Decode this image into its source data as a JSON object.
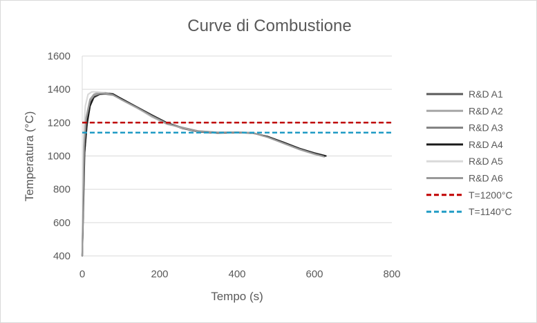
{
  "chart_data": {
    "type": "line",
    "title": "Curve di Combustione",
    "xlabel": "Tempo (s)",
    "ylabel": "Temperatura (°C)",
    "xlim": [
      0,
      800
    ],
    "ylim": [
      400,
      1600
    ],
    "xticks": [
      0,
      200,
      400,
      600,
      800
    ],
    "yticks": [
      400,
      600,
      800,
      1000,
      1200,
      1400,
      1600
    ],
    "gridlines": "horizontal",
    "legend_position": "right",
    "series": [
      {
        "name": "R&D A1",
        "color": "#595959",
        "dashed": false,
        "points": [
          [
            0,
            400
          ],
          [
            5,
            1050
          ],
          [
            10,
            1200
          ],
          [
            20,
            1320
          ],
          [
            30,
            1360
          ],
          [
            40,
            1375
          ],
          [
            60,
            1378
          ],
          [
            80,
            1372
          ],
          [
            100,
            1345
          ],
          [
            140,
            1295
          ],
          [
            180,
            1245
          ],
          [
            220,
            1195
          ],
          [
            260,
            1165
          ],
          [
            300,
            1145
          ],
          [
            350,
            1138
          ],
          [
            400,
            1140
          ],
          [
            440,
            1138
          ],
          [
            480,
            1115
          ],
          [
            520,
            1080
          ],
          [
            560,
            1045
          ],
          [
            600,
            1018
          ],
          [
            630,
            1000
          ]
        ]
      },
      {
        "name": "R&D A2",
        "color": "#a6a6a6",
        "dashed": false,
        "points": [
          [
            0,
            400
          ],
          [
            5,
            1080
          ],
          [
            10,
            1230
          ],
          [
            20,
            1340
          ],
          [
            30,
            1370
          ],
          [
            40,
            1380
          ],
          [
            60,
            1380
          ],
          [
            80,
            1368
          ],
          [
            100,
            1340
          ],
          [
            140,
            1290
          ],
          [
            180,
            1235
          ],
          [
            220,
            1190
          ],
          [
            260,
            1170
          ],
          [
            300,
            1150
          ],
          [
            350,
            1142
          ],
          [
            400,
            1143
          ],
          [
            440,
            1140
          ],
          [
            480,
            1112
          ],
          [
            520,
            1075
          ],
          [
            560,
            1040
          ],
          [
            600,
            1010
          ],
          [
            625,
            995
          ]
        ]
      },
      {
        "name": "R&D A3",
        "color": "#7f7f7f",
        "dashed": false,
        "points": [
          [
            0,
            400
          ],
          [
            5,
            1000
          ],
          [
            12,
            1180
          ],
          [
            20,
            1300
          ],
          [
            30,
            1350
          ],
          [
            45,
            1370
          ],
          [
            60,
            1372
          ],
          [
            80,
            1365
          ],
          [
            100,
            1340
          ],
          [
            140,
            1290
          ],
          [
            180,
            1240
          ],
          [
            220,
            1195
          ],
          [
            260,
            1170
          ],
          [
            300,
            1148
          ],
          [
            350,
            1140
          ],
          [
            400,
            1142
          ],
          [
            440,
            1139
          ],
          [
            480,
            1113
          ],
          [
            520,
            1078
          ],
          [
            560,
            1042
          ],
          [
            600,
            1012
          ],
          [
            620,
            998
          ]
        ]
      },
      {
        "name": "R&D A4",
        "color": "#1a1a1a",
        "dashed": false,
        "points": [
          [
            0,
            400
          ],
          [
            6,
            1020
          ],
          [
            12,
            1190
          ],
          [
            20,
            1300
          ],
          [
            30,
            1355
          ],
          [
            45,
            1372
          ],
          [
            60,
            1376
          ],
          [
            80,
            1370
          ],
          [
            100,
            1345
          ],
          [
            140,
            1295
          ],
          [
            180,
            1245
          ],
          [
            220,
            1198
          ],
          [
            260,
            1168
          ],
          [
            300,
            1146
          ],
          [
            350,
            1139
          ],
          [
            400,
            1141
          ],
          [
            440,
            1138
          ],
          [
            480,
            1116
          ],
          [
            520,
            1082
          ],
          [
            560,
            1046
          ],
          [
            600,
            1016
          ],
          [
            628,
            1000
          ]
        ]
      },
      {
        "name": "R&D A5",
        "color": "#d9d9d9",
        "dashed": false,
        "points": [
          [
            0,
            400
          ],
          [
            4,
            1150
          ],
          [
            8,
            1300
          ],
          [
            15,
            1370
          ],
          [
            25,
            1385
          ],
          [
            40,
            1385
          ],
          [
            60,
            1378
          ],
          [
            80,
            1365
          ],
          [
            100,
            1338
          ],
          [
            140,
            1288
          ],
          [
            180,
            1238
          ],
          [
            220,
            1192
          ],
          [
            260,
            1168
          ],
          [
            300,
            1148
          ],
          [
            350,
            1141
          ],
          [
            400,
            1142
          ],
          [
            440,
            1139
          ],
          [
            480,
            1111
          ],
          [
            520,
            1076
          ],
          [
            560,
            1041
          ],
          [
            600,
            1011
          ],
          [
            622,
            996
          ]
        ]
      },
      {
        "name": "R&D A6",
        "color": "#999999",
        "dashed": false,
        "points": [
          [
            0,
            400
          ],
          [
            5,
            1060
          ],
          [
            10,
            1220
          ],
          [
            20,
            1330
          ],
          [
            30,
            1362
          ],
          [
            45,
            1375
          ],
          [
            60,
            1376
          ],
          [
            80,
            1366
          ],
          [
            100,
            1340
          ],
          [
            140,
            1292
          ],
          [
            180,
            1240
          ],
          [
            220,
            1193
          ],
          [
            260,
            1170
          ],
          [
            300,
            1149
          ],
          [
            350,
            1141
          ],
          [
            400,
            1142
          ],
          [
            440,
            1139
          ],
          [
            480,
            1112
          ],
          [
            520,
            1077
          ],
          [
            560,
            1041
          ],
          [
            600,
            1012
          ],
          [
            624,
            997
          ]
        ]
      },
      {
        "name": "T=1200°C",
        "color": "#c00000",
        "dashed": true,
        "points": [
          [
            0,
            1200
          ],
          [
            800,
            1200
          ]
        ]
      },
      {
        "name": "T=1140°C",
        "color": "#1f9bc4",
        "dashed": true,
        "points": [
          [
            0,
            1140
          ],
          [
            800,
            1140
          ]
        ]
      }
    ]
  }
}
